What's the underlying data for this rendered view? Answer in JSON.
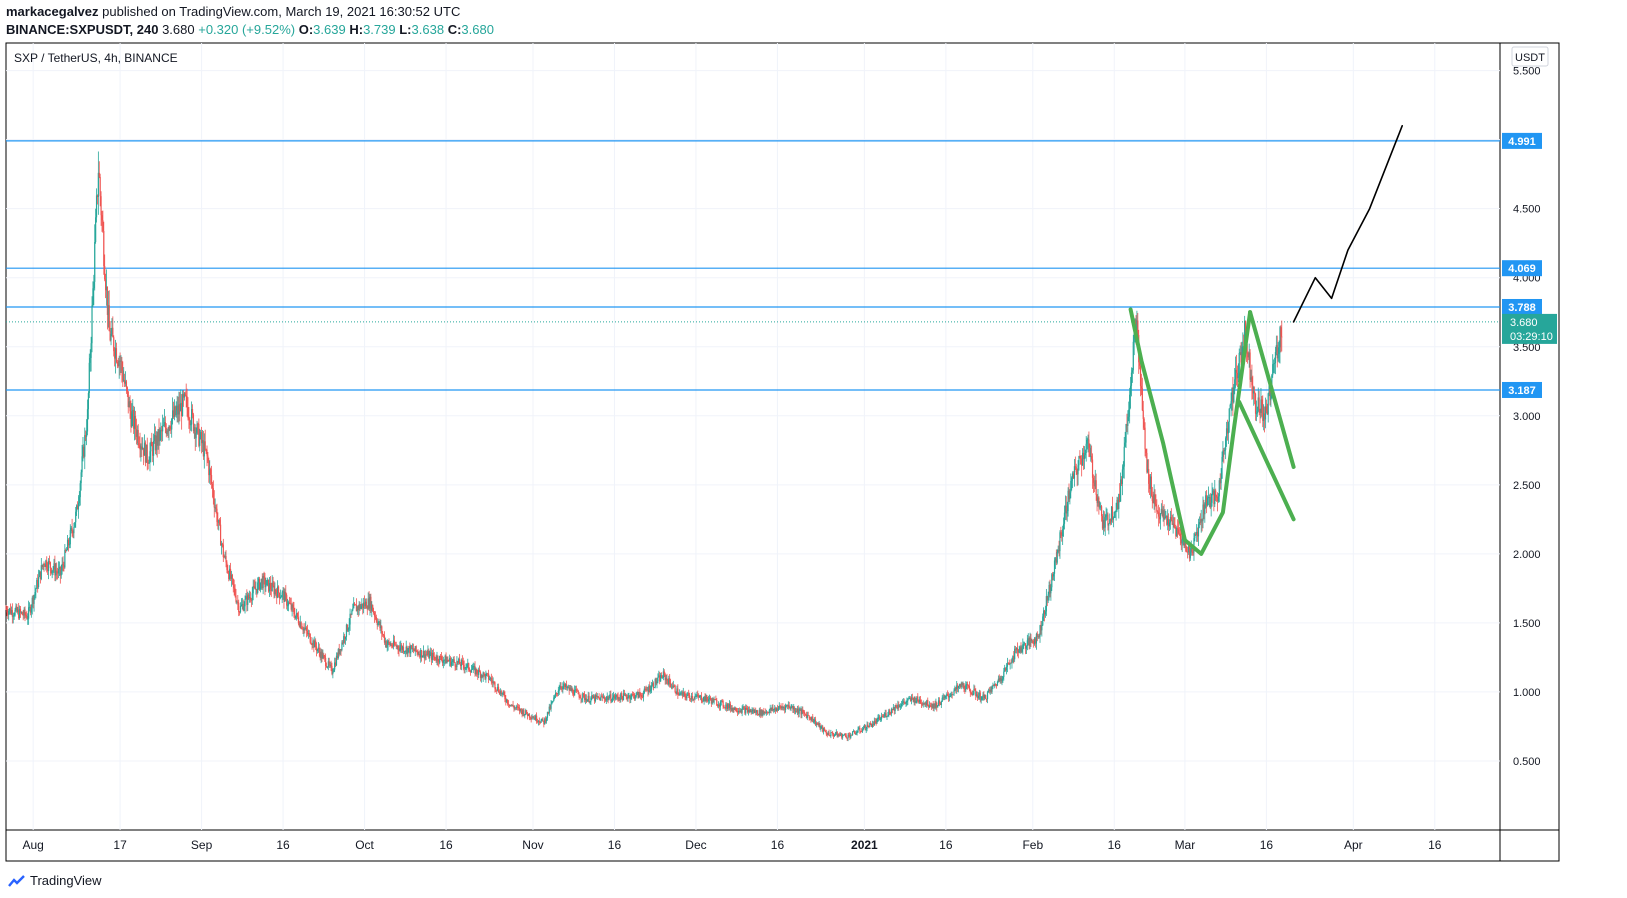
{
  "header": {
    "publisher": "markacegalvez",
    "published_text": "published on TradingView.com, March 19, 2021 16:30:52 UTC",
    "symbol": "BINANCE:SXPUSDT, 240",
    "last": "3.680",
    "change": "+0.320 (+9.52%)",
    "o_label": "O:",
    "o_val": "3.639",
    "h_label": "H:",
    "h_val": "3.739",
    "l_label": "L:",
    "l_val": "3.638",
    "c_label": "C:",
    "c_val": "3.680"
  },
  "footer": {
    "brand": "TradingView"
  },
  "colors": {
    "up": "#26a69a",
    "down": "#ef5350",
    "hline": "#2196f3",
    "green_draw": "#4caf50",
    "black_draw": "#000000"
  },
  "chart_data": {
    "type": "candlestick",
    "title": "SXP / TetherUS, 4h, BINANCE",
    "currency": "USDT",
    "y_ticks": [
      0.5,
      1.0,
      1.5,
      2.0,
      2.5,
      3.0,
      3.5,
      4.0,
      4.5,
      5.0,
      5.5
    ],
    "y_tick_labels": [
      "0.500",
      "1.000",
      "1.500",
      "2.000",
      "2.500",
      "3.000",
      "3.500",
      "4.000",
      "4.500",
      "5.000",
      "5.500"
    ],
    "ylim": [
      0.0,
      5.7
    ],
    "x_range": [
      "2020-07-27",
      "2021-04-28"
    ],
    "x_ticks": [
      {
        "date": "2020-08-01",
        "label": "Aug"
      },
      {
        "date": "2020-08-17",
        "label": "17"
      },
      {
        "date": "2020-09-01",
        "label": "Sep"
      },
      {
        "date": "2020-09-16",
        "label": "16"
      },
      {
        "date": "2020-10-01",
        "label": "Oct"
      },
      {
        "date": "2020-10-16",
        "label": "16"
      },
      {
        "date": "2020-11-01",
        "label": "Nov"
      },
      {
        "date": "2020-11-16",
        "label": "16"
      },
      {
        "date": "2020-12-01",
        "label": "Dec"
      },
      {
        "date": "2020-12-16",
        "label": "16"
      },
      {
        "date": "2021-01-01",
        "label": "2021"
      },
      {
        "date": "2021-01-16",
        "label": "16"
      },
      {
        "date": "2021-02-01",
        "label": "Feb"
      },
      {
        "date": "2021-02-16",
        "label": "16"
      },
      {
        "date": "2021-03-01",
        "label": "Mar"
      },
      {
        "date": "2021-03-16",
        "label": "16"
      },
      {
        "date": "2021-04-01",
        "label": "Apr"
      },
      {
        "date": "2021-04-16",
        "label": "16"
      }
    ],
    "price_path": [
      [
        "2020-07-27",
        1.6
      ],
      [
        "2020-07-31",
        1.55
      ],
      [
        "2020-08-03",
        1.95
      ],
      [
        "2020-08-06",
        1.85
      ],
      [
        "2020-08-09",
        2.3
      ],
      [
        "2020-08-11",
        3.0
      ],
      [
        "2020-08-13",
        4.8
      ],
      [
        "2020-08-15",
        3.6
      ],
      [
        "2020-08-17",
        3.4
      ],
      [
        "2020-08-19",
        3.0
      ],
      [
        "2020-08-22",
        2.7
      ],
      [
        "2020-08-25",
        2.9
      ],
      [
        "2020-08-29",
        3.1
      ],
      [
        "2020-09-02",
        2.7
      ],
      [
        "2020-09-05",
        2.0
      ],
      [
        "2020-09-08",
        1.6
      ],
      [
        "2020-09-12",
        1.8
      ],
      [
        "2020-09-16",
        1.7
      ],
      [
        "2020-09-20",
        1.45
      ],
      [
        "2020-09-25",
        1.15
      ],
      [
        "2020-09-29",
        1.6
      ],
      [
        "2020-10-02",
        1.65
      ],
      [
        "2020-10-05",
        1.35
      ],
      [
        "2020-10-10",
        1.3
      ],
      [
        "2020-10-14",
        1.25
      ],
      [
        "2020-10-19",
        1.2
      ],
      [
        "2020-10-24",
        1.1
      ],
      [
        "2020-10-28",
        0.9
      ],
      [
        "2020-11-03",
        0.78
      ],
      [
        "2020-11-06",
        1.05
      ],
      [
        "2020-11-11",
        0.95
      ],
      [
        "2020-11-16",
        0.96
      ],
      [
        "2020-11-21",
        0.98
      ],
      [
        "2020-11-25",
        1.12
      ],
      [
        "2020-11-28",
        0.98
      ],
      [
        "2020-12-03",
        0.95
      ],
      [
        "2020-12-08",
        0.88
      ],
      [
        "2020-12-13",
        0.85
      ],
      [
        "2020-12-18",
        0.9
      ],
      [
        "2020-12-22",
        0.82
      ],
      [
        "2020-12-25",
        0.7
      ],
      [
        "2020-12-29",
        0.68
      ],
      [
        "2021-01-03",
        0.78
      ],
      [
        "2021-01-07",
        0.9
      ],
      [
        "2021-01-10",
        0.95
      ],
      [
        "2021-01-14",
        0.9
      ],
      [
        "2021-01-19",
        1.05
      ],
      [
        "2021-01-23",
        0.95
      ],
      [
        "2021-01-26",
        1.1
      ],
      [
        "2021-01-29",
        1.3
      ],
      [
        "2021-02-02",
        1.4
      ],
      [
        "2021-02-05",
        1.9
      ],
      [
        "2021-02-08",
        2.5
      ],
      [
        "2021-02-11",
        2.8
      ],
      [
        "2021-02-14",
        2.2
      ],
      [
        "2021-02-17",
        2.4
      ],
      [
        "2021-02-20",
        3.7
      ],
      [
        "2021-02-22",
        2.6
      ],
      [
        "2021-02-24",
        2.3
      ],
      [
        "2021-02-27",
        2.2
      ],
      [
        "2021-03-02",
        2.0
      ],
      [
        "2021-03-05",
        2.4
      ],
      [
        "2021-03-07",
        2.4
      ],
      [
        "2021-03-09",
        3.0
      ],
      [
        "2021-03-12",
        3.6
      ],
      [
        "2021-03-14",
        3.1
      ],
      [
        "2021-03-16",
        3.0
      ],
      [
        "2021-03-17",
        3.3
      ],
      [
        "2021-03-19",
        3.68
      ]
    ],
    "horizontal_levels": [
      4.991,
      4.069,
      3.788,
      3.187
    ],
    "price_labels": [
      {
        "value": 4.991,
        "label": "4.991"
      },
      {
        "value": 4.069,
        "label": "4.069"
      },
      {
        "value": 3.788,
        "label": "3.788"
      },
      {
        "value": 3.187,
        "label": "3.187"
      }
    ],
    "current_price": {
      "value": 3.68,
      "label": "3.680",
      "countdown": "03:29:10"
    },
    "drawings": {
      "green_cup": [
        [
          "2021-02-19",
          3.77
        ],
        [
          "2021-02-21",
          3.4
        ],
        [
          "2021-02-25",
          2.8
        ],
        [
          "2021-03-01",
          2.1
        ],
        [
          "2021-03-04",
          2.0
        ],
        [
          "2021-03-08",
          2.3
        ],
        [
          "2021-03-10",
          2.9
        ],
        [
          "2021-03-13",
          3.75
        ]
      ],
      "green_flag_top": [
        [
          "2021-03-13",
          3.75
        ],
        [
          "2021-03-21",
          2.63
        ]
      ],
      "green_flag_bottom": [
        [
          "2021-03-11",
          3.1
        ],
        [
          "2021-03-21",
          2.25
        ]
      ],
      "black_projection": [
        [
          "2021-03-21",
          3.68
        ],
        [
          "2021-03-25",
          4.0
        ],
        [
          "2021-03-28",
          3.85
        ],
        [
          "2021-03-31",
          4.2
        ],
        [
          "2021-04-04",
          4.5
        ],
        [
          "2021-04-10",
          5.1
        ]
      ]
    }
  }
}
